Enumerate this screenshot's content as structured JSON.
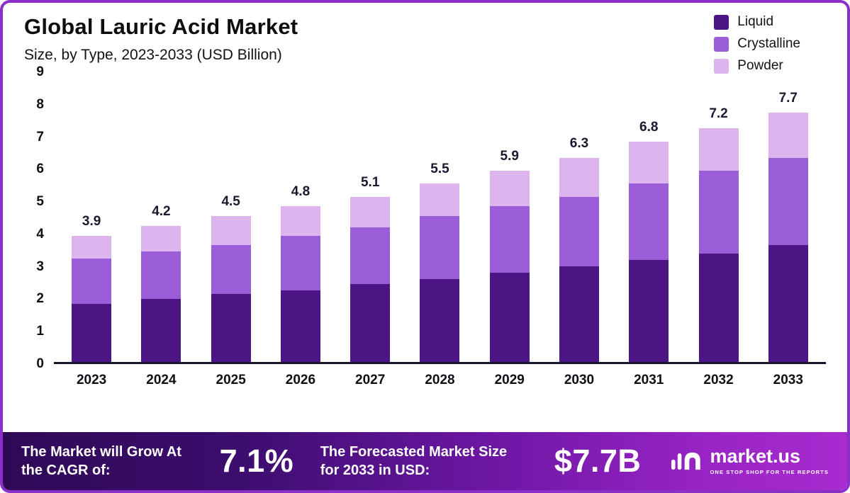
{
  "header": {
    "title": "Global Lauric Acid Market",
    "subtitle": "Size, by Type, 2023-2033 (USD Billion)"
  },
  "colors": {
    "frame_border": "#8b2fc9",
    "axis_line": "#17142e",
    "banner_gradient_start": "#2e0a56",
    "banner_gradient_end": "#a82bd0"
  },
  "chart_data": {
    "type": "bar",
    "stacked": true,
    "title": "Global Lauric Acid Market",
    "subtitle": "Size, by Type, 2023-2033 (USD Billion)",
    "categories": [
      "2023",
      "2024",
      "2025",
      "2026",
      "2027",
      "2028",
      "2029",
      "2030",
      "2031",
      "2032",
      "2033"
    ],
    "series": [
      {
        "name": "Liquid",
        "color": "#4b1584",
        "values": [
          1.8,
          1.95,
          2.1,
          2.2,
          2.4,
          2.55,
          2.75,
          2.95,
          3.15,
          3.35,
          3.6
        ]
      },
      {
        "name": "Crystalline",
        "color": "#9c5ed8",
        "values": [
          1.4,
          1.45,
          1.5,
          1.7,
          1.75,
          1.95,
          2.05,
          2.15,
          2.35,
          2.55,
          2.7
        ]
      },
      {
        "name": "Powder",
        "color": "#dcb4ee",
        "values": [
          0.7,
          0.8,
          0.9,
          0.9,
          0.95,
          1.0,
          1.1,
          1.2,
          1.3,
          1.3,
          1.4
        ]
      }
    ],
    "totals": [
      3.9,
      4.2,
      4.5,
      4.8,
      5.1,
      5.5,
      5.9,
      6.3,
      6.8,
      7.2,
      7.7
    ],
    "ylim": [
      0,
      9
    ],
    "yticks": [
      0,
      1,
      2,
      3,
      4,
      5,
      6,
      7,
      8,
      9
    ],
    "xlabel": "",
    "ylabel": "",
    "grid": false,
    "legend_position": "top-right"
  },
  "footer": {
    "cagr_label": "The Market will Grow At the CAGR of:",
    "cagr_value": "7.1%",
    "forecast_label": "The Forecasted Market Size for 2033 in USD:",
    "forecast_value": "$7.7B",
    "brand": "market.us",
    "brand_tagline": "ONE STOP SHOP FOR THE REPORTS"
  }
}
